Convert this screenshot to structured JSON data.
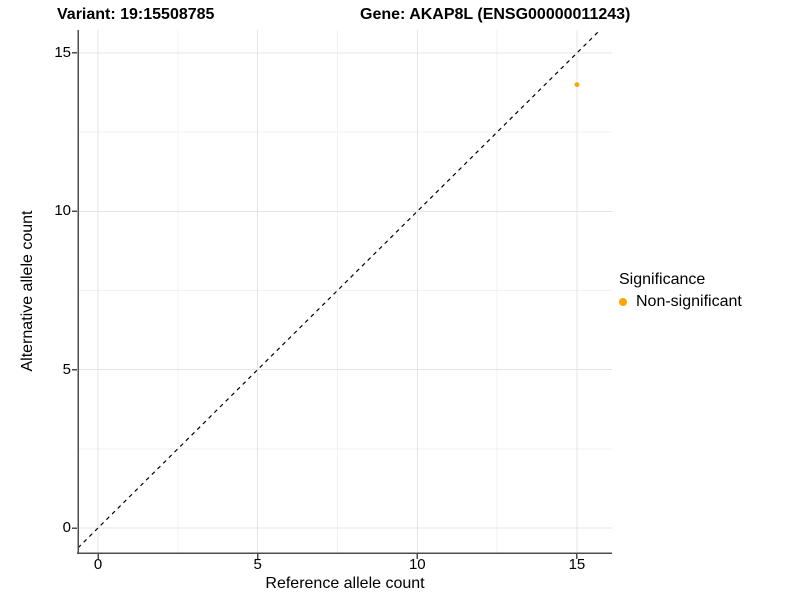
{
  "figure": {
    "title_left": "Variant: 19:15508785",
    "title_right": "Gene: AKAP8L (ENSG00000011243)"
  },
  "chart_data": {
    "type": "scatter",
    "title": "Variant: 19:15508785  /  Gene: AKAP8L (ENSG00000011243)",
    "xlabel": "Reference allele count",
    "ylabel": "Alternative allele count",
    "xticks": [
      0,
      5,
      10,
      15
    ],
    "yticks": [
      0,
      5,
      10,
      15
    ],
    "minor_ticks": [
      2.5,
      7.5,
      12.5
    ],
    "xlim": [
      -0.63,
      16.1
    ],
    "ylim": [
      -0.79,
      15.72
    ],
    "grid": "major+minor",
    "reference_line": {
      "type": "identity y=x",
      "style": "dashed",
      "color": "#000000"
    },
    "series": [
      {
        "name": "Non-significant",
        "color": "#FFA500",
        "points": [
          {
            "x": 15,
            "y": 14
          }
        ]
      }
    ],
    "legend": {
      "title": "Significance",
      "position": "right",
      "items": [
        {
          "label": "Non-significant",
          "color": "#FFA500"
        }
      ]
    },
    "colors": {
      "grid_major": "#E4E4E4",
      "grid_minor": "#F1F1F1",
      "axis_line": "#4D4D4D",
      "point": "#FFA500",
      "text": "#000000"
    }
  }
}
